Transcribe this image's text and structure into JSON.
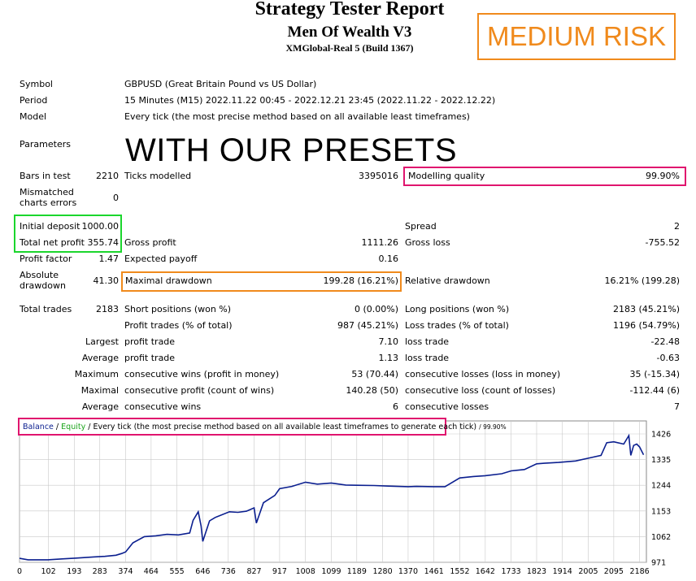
{
  "header": {
    "title": "Strategy Tester Report",
    "ea_name": "Men Of Wealth V3",
    "server": "XMGlobal-Real 5 (Build 1367)",
    "risk_badge": "MEDIUM RISK",
    "presets_text": "WITH OUR PRESETS"
  },
  "info": {
    "symbol_label": "Symbol",
    "symbol_value": "GBPUSD (Great Britain Pound vs US Dollar)",
    "period_label": "Period",
    "period_value": "15 Minutes (M15) 2022.11.22 00:45 - 2022.12.21 23:45 (2022.11.22 - 2022.12.22)",
    "model_label": "Model",
    "model_value": "Every tick (the most precise method based on all available least timeframes)",
    "parameters_label": "Parameters"
  },
  "stats": {
    "bars_label": "Bars in test",
    "bars_value": "2210",
    "ticks_label": "Ticks modelled",
    "ticks_value": "3395016",
    "quality_label": "Modelling quality",
    "quality_value": "99.90%",
    "mismatch_label_1": "Mismatched",
    "mismatch_label_2": "charts errors",
    "mismatch_value": "0",
    "initial_label": "Initial deposit",
    "initial_value": "1000.00",
    "spread_label": "Spread",
    "spread_value": "2",
    "net_label": "Total net profit",
    "net_value": "355.74",
    "gross_profit_label": "Gross profit",
    "gross_profit_value": "1111.26",
    "gross_loss_label": "Gross loss",
    "gross_loss_value": "-755.52",
    "pf_label": "Profit factor",
    "pf_value": "1.47",
    "payoff_label": "Expected payoff",
    "payoff_value": "0.16",
    "abs_dd_label_1": "Absolute",
    "abs_dd_label_2": "drawdown",
    "abs_dd_value": "41.30",
    "max_dd_label": "Maximal drawdown",
    "max_dd_value": "199.28 (16.21%)",
    "rel_dd_label": "Relative drawdown",
    "rel_dd_value": "16.21% (199.28)",
    "trades_label": "Total trades",
    "trades_value": "2183",
    "short_label": "Short positions (won %)",
    "short_value": "0 (0.00%)",
    "long_label": "Long positions (won %)",
    "long_value": "2183 (45.21%)",
    "pt_label": "Profit trades (% of total)",
    "pt_value": "987 (45.21%)",
    "lt_label": "Loss trades (% of total)",
    "lt_value": "1196 (54.79%)",
    "largest_label": "Largest",
    "largest_pt_label": "profit trade",
    "largest_pt_value": "7.10",
    "largest_lt_label": "loss trade",
    "largest_lt_value": "-22.48",
    "average_label": "Average",
    "average_pt_label": "profit trade",
    "average_pt_value": "1.13",
    "average_lt_label": "loss trade",
    "average_lt_value": "-0.63",
    "maximum_label": "Maximum",
    "max_cw_label": "consecutive wins (profit in money)",
    "max_cw_value": "53 (70.44)",
    "max_cl_label": "consecutive losses (loss in money)",
    "max_cl_value": "35 (-15.34)",
    "maximal_label": "Maximal",
    "maximal_cp_label": "consecutive profit (count of wins)",
    "maximal_cp_value": "140.28 (50)",
    "maximal_cl_label": "consecutive loss (count of losses)",
    "maximal_cl_value": "-112.44 (6)",
    "avg2_label": "Average",
    "avg_cw_label": "consecutive wins",
    "avg_cw_value": "6",
    "avg_cl_label": "consecutive losses",
    "avg_cl_value": "7"
  },
  "legend": {
    "balance": "Balance",
    "sep1": " / ",
    "equity": "Equity",
    "rest": " / Every tick (the most precise method based on all available least timeframes to generate each tick)",
    "quality": " / 99.90%"
  },
  "colors": {
    "balance_line": "#0b1f8f",
    "grid": "#c9c9c9",
    "highlight_pink": "#e0156e",
    "highlight_orange": "#f08a1c",
    "highlight_green": "#1bd62d",
    "equity_text": "#1aa31a"
  },
  "chart_data": {
    "type": "line",
    "series": [
      {
        "name": "Balance",
        "x": [
          0,
          30,
          100,
          150,
          200,
          260,
          300,
          340,
          360,
          374,
          400,
          440,
          480,
          520,
          560,
          600,
          612,
          630,
          640,
          646,
          670,
          690,
          740,
          770,
          800,
          827,
          835,
          860,
          900,
          917,
          960,
          1008,
          1050,
          1099,
          1150,
          1189,
          1250,
          1300,
          1370,
          1400,
          1460,
          1500,
          1552,
          1600,
          1642,
          1700,
          1733,
          1780,
          1823,
          1850,
          1900,
          1960,
          2005,
          2050,
          2070,
          2095,
          2130,
          2148,
          2155,
          2165,
          2176,
          2186,
          2200
        ],
        "values": [
          985,
          980,
          980,
          983,
          986,
          990,
          992,
          996,
          1002,
          1008,
          1040,
          1062,
          1065,
          1070,
          1068,
          1075,
          1120,
          1150,
          1100,
          1045,
          1118,
          1130,
          1150,
          1148,
          1152,
          1164,
          1110,
          1182,
          1208,
          1232,
          1240,
          1255,
          1248,
          1252,
          1245,
          1244,
          1243,
          1241,
          1239,
          1240,
          1239,
          1239,
          1270,
          1275,
          1278,
          1285,
          1295,
          1300,
          1320,
          1322,
          1325,
          1330,
          1340,
          1350,
          1395,
          1398,
          1390,
          1420,
          1350,
          1385,
          1390,
          1380,
          1352
        ]
      }
    ],
    "x_ticks": [
      "0",
      "102",
      "193",
      "283",
      "374",
      "464",
      "555",
      "646",
      "736",
      "827",
      "917",
      "1008",
      "1099",
      "1189",
      "1280",
      "1370",
      "1461",
      "1552",
      "1642",
      "1733",
      "1823",
      "1914",
      "2005",
      "2095",
      "2186"
    ],
    "y_ticks": [
      "1426",
      "1335",
      "1244",
      "1153",
      "1062",
      "971"
    ],
    "xlim": [
      0,
      2210
    ],
    "ylim": [
      971,
      1426
    ],
    "grid": true
  }
}
